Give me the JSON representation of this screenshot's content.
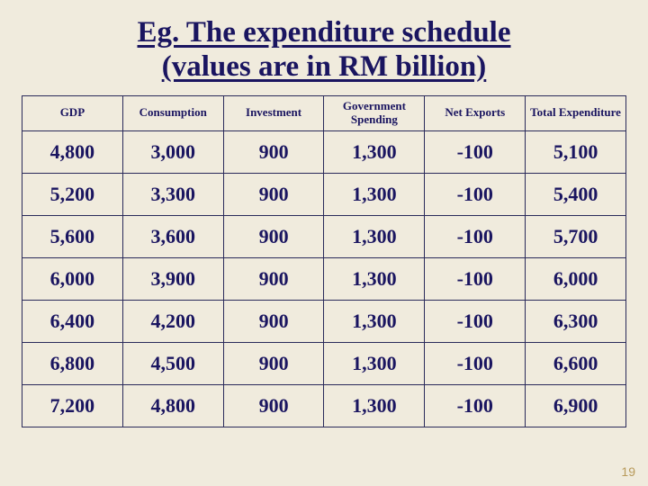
{
  "title": {
    "line1": "Eg. The expenditure schedule",
    "line2": "(values are in RM billion)",
    "fontsize": 33,
    "underline": true
  },
  "table": {
    "type": "table",
    "header_fontsize": 13,
    "cell_fontsize": 22,
    "border_color": "#2a2a5a",
    "text_color": "#1a1560",
    "columns": [
      "GDP",
      "Consumption",
      "Investment",
      "Government Spending",
      "Net Exports",
      "Total Expenditure"
    ],
    "rows": [
      [
        "4,800",
        "3,000",
        "900",
        "1,300",
        "-100",
        "5,100"
      ],
      [
        "5,200",
        "3,300",
        "900",
        "1,300",
        "-100",
        "5,400"
      ],
      [
        "5,600",
        "3,600",
        "900",
        "1,300",
        "-100",
        "5,700"
      ],
      [
        "6,000",
        "3,900",
        "900",
        "1,300",
        "-100",
        "6,000"
      ],
      [
        "6,400",
        "4,200",
        "900",
        "1,300",
        "-100",
        "6,300"
      ],
      [
        "6,800",
        "4,500",
        "900",
        "1,300",
        "-100",
        "6,600"
      ],
      [
        "7,200",
        "4,800",
        "900",
        "1,300",
        "-100",
        "6,900"
      ]
    ]
  },
  "page_number": "19",
  "background_color": "#f0ebdd"
}
